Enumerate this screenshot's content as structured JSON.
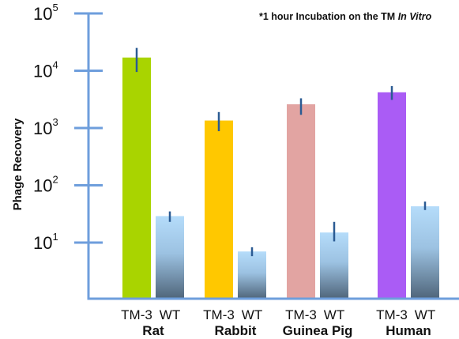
{
  "chart_data": {
    "type": "bar",
    "scale": "log",
    "ylabel": "Phage Recovery",
    "annotation": {
      "prefix": "*1 hour Incubation on the TM ",
      "italic": "In Vitro"
    },
    "ylim": [
      1,
      100000
    ],
    "y_ticks": [
      {
        "base": "10",
        "exp": "1",
        "value": 10
      },
      {
        "base": "10",
        "exp": "2",
        "value": 100
      },
      {
        "base": "10",
        "exp": "3",
        "value": 1000
      },
      {
        "base": "10",
        "exp": "4",
        "value": 10000
      },
      {
        "base": "10",
        "exp": "5",
        "value": 100000
      }
    ],
    "grid": false,
    "groups": [
      {
        "name": "Rat",
        "bars": [
          {
            "label": "TM-3",
            "value": 17000,
            "err_low": 9500,
            "err_high": 25000,
            "color": "#a9d400"
          },
          {
            "label": "WT",
            "value": 29,
            "err_low": 23,
            "err_high": 35,
            "color": "gradient"
          }
        ]
      },
      {
        "name": "Rabbit",
        "bars": [
          {
            "label": "TM-3",
            "value": 1350,
            "err_low": 880,
            "err_high": 1900,
            "color": "#ffc800"
          },
          {
            "label": "WT",
            "value": 7,
            "err_low": 5.8,
            "err_high": 8.3,
            "color": "gradient"
          }
        ]
      },
      {
        "name": "Guinea Pig",
        "bars": [
          {
            "label": "TM-3",
            "value": 2600,
            "err_low": 1700,
            "err_high": 3300,
            "color": "#e2a4a2"
          },
          {
            "label": "WT",
            "value": 15,
            "err_low": 10.5,
            "err_high": 23,
            "color": "gradient"
          }
        ]
      },
      {
        "name": "Human",
        "bars": [
          {
            "label": "TM-3",
            "value": 4200,
            "err_low": 3100,
            "err_high": 5400,
            "color": "#aa5cf5"
          },
          {
            "label": "WT",
            "value": 43,
            "err_low": 37,
            "err_high": 52,
            "color": "gradient"
          }
        ]
      }
    ],
    "colors": {
      "axis": "#6e9edc",
      "error_bar": "#2b5b93",
      "wt_top": "#b5dcfa",
      "wt_bottom": "#4f657a"
    }
  }
}
